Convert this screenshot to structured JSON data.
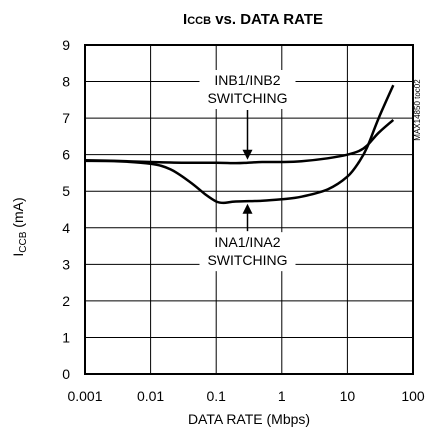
{
  "chart_data": {
    "type": "line",
    "title_main": "I",
    "title_sub": "CCB",
    "title_rest": " vs. DATA RATE",
    "xlabel": "DATA RATE (Mbps)",
    "ylabel_main": "I",
    "ylabel_sub": "CCB",
    "ylabel_rest": " (mA)",
    "x_scale": "log",
    "xlim": [
      0.001,
      100
    ],
    "ylim": [
      0,
      9
    ],
    "x_ticks": [
      0.001,
      0.01,
      0.1,
      1,
      10,
      100
    ],
    "x_tick_labels": [
      "0.001",
      "0.01",
      "0.1",
      "1",
      "10",
      "100"
    ],
    "y_ticks": [
      0,
      1,
      2,
      3,
      4,
      5,
      6,
      7,
      8,
      9
    ],
    "y_tick_labels": [
      "0",
      "1",
      "2",
      "3",
      "4",
      "5",
      "6",
      "7",
      "8",
      "9"
    ],
    "grid": true,
    "side_label": "MAX14850 toc02",
    "series": [
      {
        "name": "INB1/INB2 SWITCHING",
        "x": [
          0.001,
          0.003,
          0.01,
          0.03,
          0.1,
          0.2,
          0.3,
          0.5,
          1,
          2,
          5,
          10,
          15,
          20,
          30,
          50
        ],
        "y": [
          5.85,
          5.83,
          5.8,
          5.78,
          5.78,
          5.77,
          5.78,
          5.8,
          5.8,
          5.82,
          5.9,
          6.0,
          6.1,
          6.25,
          6.6,
          6.95
        ]
      },
      {
        "name": "INA1/INA2 SWITCHING",
        "x": [
          0.001,
          0.003,
          0.01,
          0.02,
          0.04,
          0.07,
          0.1,
          0.13,
          0.2,
          0.5,
          1,
          2,
          5,
          10,
          15,
          20,
          30,
          50
        ],
        "y": [
          5.83,
          5.82,
          5.75,
          5.6,
          5.25,
          4.9,
          4.72,
          4.68,
          4.72,
          4.74,
          4.78,
          4.85,
          5.05,
          5.4,
          5.8,
          6.2,
          7.0,
          7.9
        ]
      }
    ],
    "annotations": [
      {
        "lines": [
          "INB1/INB2",
          "SWITCHING"
        ],
        "series": 0,
        "arrow_to": [
          0.3,
          5.78
        ]
      },
      {
        "lines": [
          "INA1/INA2",
          "SWITCHING"
        ],
        "series": 1,
        "arrow_to": [
          0.3,
          4.74
        ]
      }
    ]
  }
}
